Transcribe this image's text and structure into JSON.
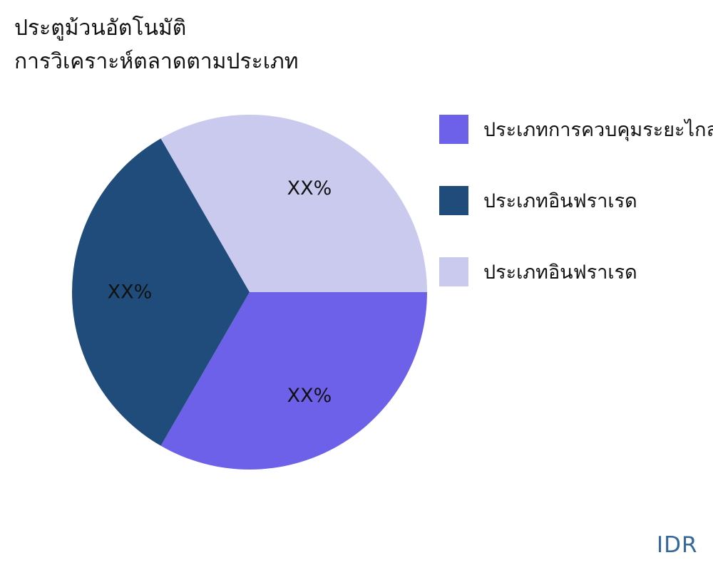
{
  "header": {
    "title_line1": "ประตูม้วนอัตโนมัติ",
    "title_line2": "การวิเคราะห์ตลาดตามประเภท"
  },
  "chart_data": {
    "type": "pie",
    "title": "ประตูม้วนอัตโนมัติ การวิเคราะห์ตลาดตามประเภท",
    "unit": "%",
    "start_angle_deg": 0,
    "direction": "clockwise",
    "legend_position": "right",
    "slices": [
      {
        "label": "ประเภทการควบคุมระยะไกล",
        "display": "XX%",
        "value": 33.33,
        "color": "#6E61E9"
      },
      {
        "label": "ประเภทอินฟราเรด",
        "display": "XX%",
        "value": 33.34,
        "color": "#1F4C7A"
      },
      {
        "label": "ประเภทอินฟราเรด",
        "display": "XX%",
        "value": 33.33,
        "color": "#C9CAEE"
      }
    ]
  },
  "footer": {
    "brand": "IDR",
    "brand_color": "#34679A"
  }
}
